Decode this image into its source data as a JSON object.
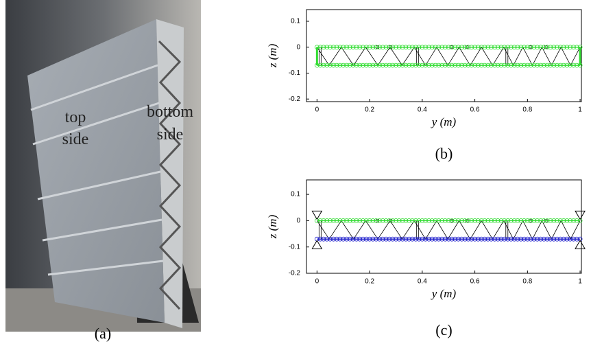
{
  "photo": {
    "top_label": [
      "top",
      "side"
    ],
    "bottom_label": [
      "bottom",
      "side"
    ],
    "caption": "(a)"
  },
  "chart_data": [
    {
      "type": "line",
      "caption": "(b)",
      "xlabel": "y (m)",
      "ylabel": "z (m)",
      "xlim": [
        -0.04,
        1.005
      ],
      "ylim": [
        -0.21,
        0.145
      ],
      "xticks": [
        0,
        0.2,
        0.4,
        0.6,
        0.8,
        1
      ],
      "yticks": [
        -0.2,
        -0.1,
        0,
        0.1
      ],
      "series": [
        {
          "color": "#33dd33",
          "x": [
            0,
            1
          ],
          "values": [
            0,
            0
          ]
        },
        {
          "color": "#33dd33",
          "x": [
            0,
            1
          ],
          "values": [
            -0.07,
            -0.07
          ]
        }
      ]
    },
    {
      "type": "line",
      "caption": "(c)",
      "xlabel": "y (m)",
      "ylabel": "z (m)",
      "xlim": [
        -0.04,
        1.005
      ],
      "ylim": [
        -0.2,
        0.155
      ],
      "xticks": [
        0,
        0.2,
        0.4,
        0.6,
        0.8,
        1
      ],
      "yticks": [
        -0.2,
        -0.1,
        0,
        0.1
      ],
      "series": [
        {
          "color": "#33dd33",
          "x": [
            0,
            1
          ],
          "values": [
            0,
            0
          ]
        },
        {
          "color": "#2222cc",
          "x": [
            0,
            1
          ],
          "values": [
            -0.07,
            -0.07
          ]
        }
      ]
    }
  ]
}
